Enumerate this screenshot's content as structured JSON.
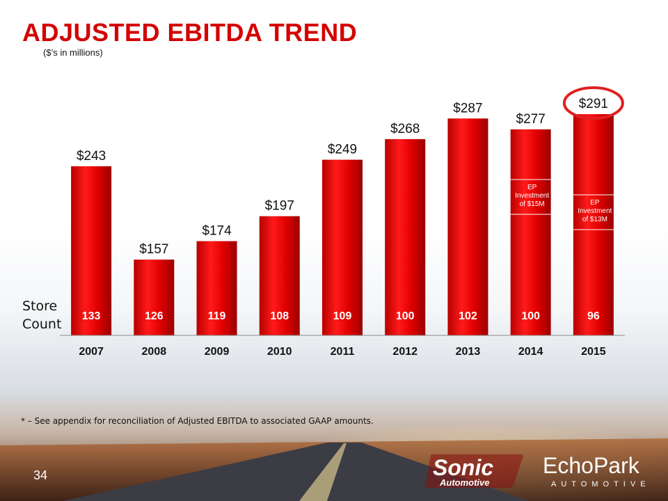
{
  "slide": {
    "title": "ADJUSTED EBITDA TREND",
    "subtitle": "($’s in millions)",
    "store_count_label": "Store Count",
    "footnote": "* – See appendix for reconciliation of Adjusted EBITDA to associated GAAP amounts.",
    "page_number": "34"
  },
  "logos": {
    "sonic": {
      "line1": "Sonic",
      "line2": "Automotive"
    },
    "echopark": {
      "line1": "EchoPark",
      "line2": "AUTOMOTIVE"
    }
  },
  "colors": {
    "title": "#d40000",
    "bar": "#e00000",
    "bar_dark": "#a00000",
    "highlight_circle": "#e02020"
  },
  "chart_data": {
    "type": "bar",
    "categories": [
      "2007",
      "2008",
      "2009",
      "2010",
      "2011",
      "2012",
      "2013",
      "2014",
      "2015"
    ],
    "values": [
      243,
      157,
      174,
      197,
      249,
      268,
      287,
      277,
      291
    ],
    "value_labels": [
      "$243",
      "$157",
      "$174",
      "$197",
      "$249",
      "$268",
      "$287",
      "$277",
      "$291"
    ],
    "store_counts": [
      "133",
      "126",
      "119",
      "108",
      "109",
      "100",
      "102",
      "100",
      "96"
    ],
    "annotations": [
      {
        "category": "2014",
        "text": [
          "EP",
          "Investment",
          "of $15M"
        ]
      },
      {
        "category": "2015",
        "text": [
          "EP",
          "Investment",
          "of $13M"
        ]
      }
    ],
    "highlighted_category": "2015",
    "title": "ADJUSTED EBITDA TREND",
    "ylim": [
      0,
      320
    ],
    "grid": false,
    "legend": "none"
  }
}
